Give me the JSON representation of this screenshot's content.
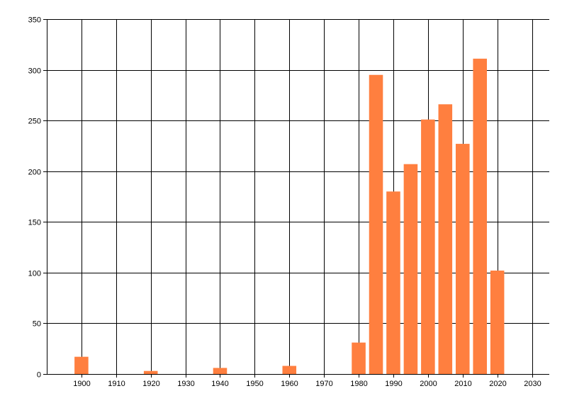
{
  "chart_data": {
    "type": "bar",
    "title": "",
    "xlabel": "",
    "ylabel": "",
    "x": [
      1900,
      1920,
      1940,
      1960,
      1980,
      1985,
      1990,
      1995,
      2000,
      2005,
      2010,
      2015,
      2020
    ],
    "values": [
      17,
      3,
      6,
      8,
      31,
      295,
      180,
      207,
      251,
      266,
      227,
      311,
      102
    ],
    "xlim": [
      1890,
      2035
    ],
    "ylim": [
      0,
      350
    ],
    "xticks": [
      1900,
      1910,
      1920,
      1930,
      1940,
      1950,
      1960,
      1970,
      1980,
      1990,
      2000,
      2010,
      2020,
      2030
    ],
    "yticks": [
      0,
      50,
      100,
      150,
      200,
      250,
      300,
      350
    ],
    "bar_color": "#ff7f3f",
    "grid": true
  }
}
